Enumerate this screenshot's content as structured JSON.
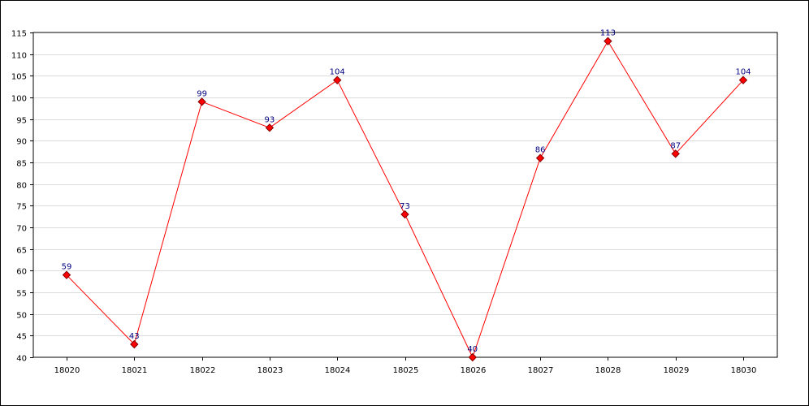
{
  "chart_data": {
    "type": "line",
    "title": "",
    "xlabel": "",
    "ylabel": "",
    "categories": [
      "18020",
      "18021",
      "18022",
      "18023",
      "18024",
      "18025",
      "18026",
      "18027",
      "18028",
      "18029",
      "18030"
    ],
    "series": [
      {
        "values": [
          59,
          43,
          99,
          93,
          104,
          73,
          40,
          86,
          113,
          87,
          104
        ]
      }
    ],
    "ylim": [
      40,
      115
    ],
    "yticks": [
      40,
      45,
      50,
      55,
      60,
      65,
      70,
      75,
      80,
      85,
      90,
      95,
      100,
      105,
      110,
      115
    ],
    "grid": true,
    "legend": "none",
    "colors": {
      "line": "#ff0000",
      "marker_fill": "#ff0000",
      "marker_stroke": "#800000",
      "data_label": "#000080",
      "grid": "#dcdcdc",
      "axis": "#000000"
    }
  }
}
